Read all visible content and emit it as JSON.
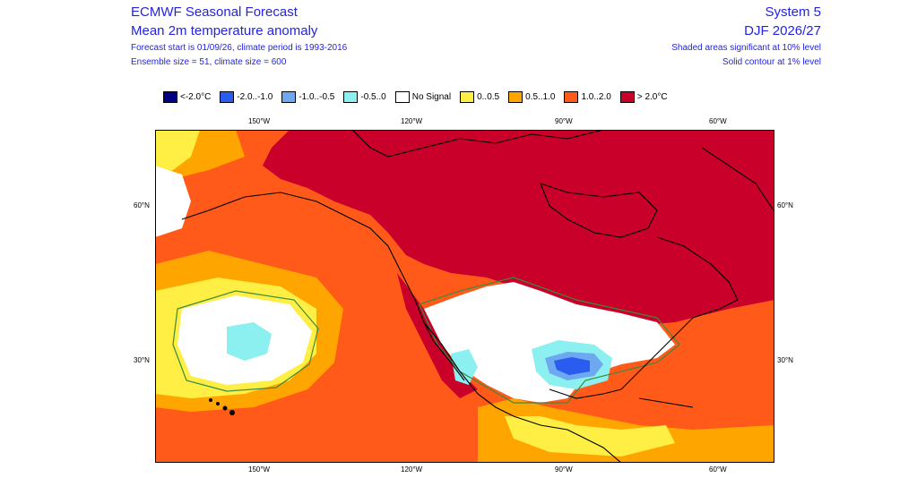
{
  "header": {
    "title": "ECMWF Seasonal Forecast",
    "subtitle": "Mean 2m temperature anomaly",
    "forecast_start": "Forecast start is 01/09/26, climate period is 1993-2016",
    "ensemble": "Ensemble size = 51, climate size = 600",
    "system": "System 5",
    "season": "DJF 2026/27",
    "shaded_note": "Shaded areas significant at 10% level",
    "solid_note": "Solid contour at 1% level"
  },
  "legend": [
    {
      "label": "<-2.0°C",
      "color": "#000080"
    },
    {
      "label": "-2.0..-1.0",
      "color": "#2a5cf0"
    },
    {
      "label": "-1.0..-0.5",
      "color": "#6ea8f0"
    },
    {
      "label": "-0.5..0",
      "color": "#8cf0f0"
    },
    {
      "label": "No Signal",
      "color": "#ffffff"
    },
    {
      "label": "0..0.5",
      "color": "#ffee44"
    },
    {
      "label": "0.5..1.0",
      "color": "#ffa500"
    },
    {
      "label": "1.0..2.0",
      "color": "#ff5a1a"
    },
    {
      "label": "> 2.0°C",
      "color": "#c8002a"
    }
  ],
  "axes": {
    "lon_top": [
      "150°W",
      "120°W",
      "90°W",
      "60°W"
    ],
    "lon_bottom": [
      "150°W",
      "120°W",
      "90°W",
      "60°W"
    ],
    "lat_left": [
      "60°N",
      "30°N"
    ],
    "lat_right": [
      "60°N",
      "30°N"
    ]
  }
}
